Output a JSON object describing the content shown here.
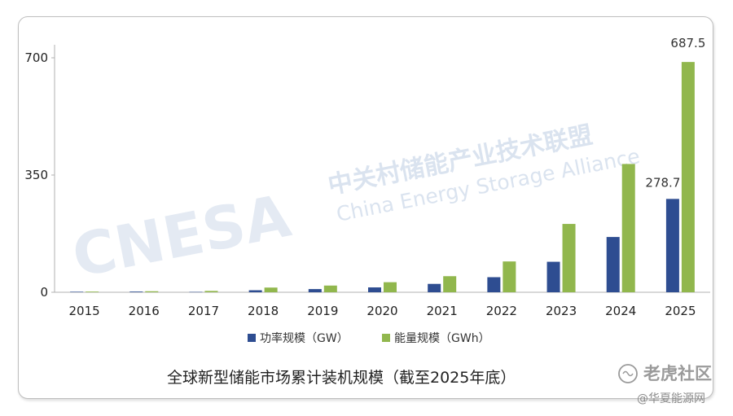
{
  "chart_data": {
    "type": "bar",
    "title": "全球新型储能市场累计装机规模（截至2025年底）",
    "categories": [
      "2015",
      "2016",
      "2017",
      "2018",
      "2019",
      "2020",
      "2021",
      "2022",
      "2023",
      "2024",
      "2025"
    ],
    "series": [
      {
        "name": "功率规模（GW）",
        "color": "#2e4d91",
        "values": [
          1.5,
          2.0,
          1.0,
          6.0,
          9.5,
          14.5,
          25.0,
          45.0,
          91.0,
          165.0,
          278.7
        ]
      },
      {
        "name": "能量规模（GWh）",
        "color": "#91b74d",
        "values": [
          2.0,
          3.0,
          4.0,
          14.0,
          20.0,
          30.0,
          48.0,
          92.0,
          204.0,
          383.0,
          687.5
        ]
      }
    ],
    "data_labels": {
      "power_2025": "278.7",
      "energy_2025": "687.5"
    },
    "y_ticks": [
      "0",
      "350",
      "700"
    ],
    "ylim": [
      0,
      700
    ],
    "legend_position": "bottom",
    "grid": false
  },
  "watermark": {
    "logo_text": "CNESA",
    "cn_name": "中关村储能产业技术联盟",
    "en_name": "China Energy Storage Alliance"
  },
  "corner_mark": {
    "main": "老虎社区",
    "sub": "@华夏能源网"
  }
}
